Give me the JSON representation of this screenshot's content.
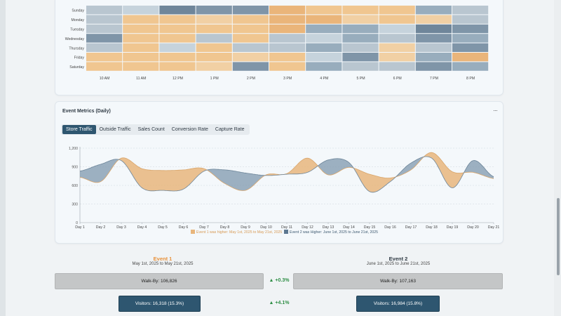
{
  "heatmap": {
    "days": [
      "Sunday",
      "Monday",
      "Tuesday",
      "Wednesday",
      "Thursday",
      "Friday",
      "Saturday"
    ],
    "hours": [
      "10 AM",
      "11 AM",
      "12 PM",
      "1 PM",
      "2 PM",
      "3 PM",
      "4 PM",
      "5 PM",
      "6 PM",
      "7 PM",
      "8 PM"
    ],
    "levels": [
      [
        1,
        2,
        5,
        4,
        4,
        8,
        7,
        7,
        7,
        3,
        1
      ],
      [
        1,
        7,
        7,
        6,
        7,
        8,
        8,
        6,
        7,
        6,
        1
      ],
      [
        1,
        7,
        7,
        7,
        7,
        8,
        3,
        3,
        2,
        5,
        4
      ],
      [
        4,
        7,
        7,
        1,
        7,
        1,
        2,
        3,
        1,
        4,
        3
      ],
      [
        1,
        7,
        2,
        7,
        1,
        1,
        3,
        1,
        6,
        1,
        4
      ],
      [
        7,
        7,
        7,
        7,
        6,
        7,
        2,
        4,
        6,
        3,
        8
      ],
      [
        7,
        7,
        7,
        6,
        4,
        7,
        3,
        1,
        1,
        4,
        3
      ]
    ]
  },
  "metrics": {
    "title": "Event Metrics (Daily)",
    "more": "···",
    "tabs": [
      "Store Traffic",
      "Outside Traffic",
      "Sales Count",
      "Conversion Rate",
      "Capture Rate"
    ],
    "active_tab": "Store Traffic"
  },
  "chart_data": {
    "type": "area",
    "categories": [
      "Day 1",
      "Day 2",
      "Day 3",
      "Day 4",
      "Day 5",
      "Day 6",
      "Day 7",
      "Day 8",
      "Day 9",
      "Day 10",
      "Day 11",
      "Day 12",
      "Day 13",
      "Day 14",
      "Day 15",
      "Day 16",
      "Day 17",
      "Day 18",
      "Day 19",
      "Day 20",
      "Day 21"
    ],
    "series": [
      {
        "name": "Event 1",
        "values": [
          730,
          660,
          1040,
          870,
          840,
          850,
          870,
          630,
          520,
          770,
          790,
          1040,
          770,
          890,
          780,
          720,
          850,
          1130,
          820,
          810,
          710
        ]
      },
      {
        "name": "Event 2",
        "values": [
          830,
          940,
          1000,
          560,
          520,
          540,
          830,
          850,
          800,
          760,
          780,
          810,
          1010,
          970,
          500,
          660,
          960,
          1040,
          560,
          1000,
          740
        ]
      }
    ],
    "yticks": [
      0,
      300,
      600,
      900,
      1200
    ],
    "ytick_labels": [
      "0",
      "300",
      "600",
      "900",
      "1,200"
    ],
    "ylim": [
      0,
      1200
    ],
    "colors": {
      "event1": "#e8b67c",
      "event2": "#7f98ad"
    },
    "legend": [
      {
        "label": "Event 1 was higher: May 1st, 2025 to May 21st, 2025",
        "color": "#e8b67c"
      },
      {
        "label": "Event 2 was Higher: June 1st, 2025 to June 21st, 2025",
        "color": "#5d7891"
      }
    ]
  },
  "summary": {
    "event1": {
      "title": "Event 1",
      "range": "May 1st, 2025 to May 21st, 2025",
      "walkby": "Walk-By: 106,826",
      "visitors": "Visitors: 16,318 (15.3%)",
      "color": "#e8913a"
    },
    "event2": {
      "title": "Event 2",
      "range": "June 1st, 2025 to June 21st, 2025",
      "walkby": "Walk-By: 107,163",
      "visitors": "Visitors: 16,984 (15.8%)"
    },
    "walkby_delta": "▲ +0.3%",
    "visitors_delta": "▲ +4.1%"
  }
}
